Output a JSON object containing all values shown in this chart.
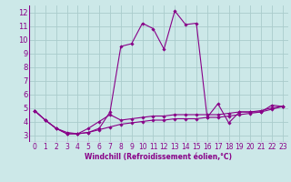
{
  "xlabel": "Windchill (Refroidissement éolien,°C)",
  "background_color": "#cce8e8",
  "grid_color": "#aacccc",
  "line_color": "#880088",
  "xlim": [
    -0.5,
    23.5
  ],
  "ylim": [
    2.5,
    12.5
  ],
  "yticks": [
    3,
    4,
    5,
    6,
    7,
    8,
    9,
    10,
    11,
    12
  ],
  "xticks": [
    0,
    1,
    2,
    3,
    4,
    5,
    6,
    7,
    8,
    9,
    10,
    11,
    12,
    13,
    14,
    15,
    16,
    17,
    18,
    19,
    20,
    21,
    22,
    23
  ],
  "xtick_labels": [
    "0",
    "1",
    "2",
    "3",
    "4",
    "5",
    "6",
    "7",
    "8",
    "9",
    "10",
    "11",
    "12",
    "13",
    "14",
    "15",
    "16",
    "17",
    "18",
    "19",
    "20",
    "21",
    "22",
    "23"
  ],
  "series": [
    [
      4.8,
      4.1,
      3.5,
      3.1,
      3.1,
      3.2,
      3.5,
      4.7,
      9.5,
      9.7,
      11.2,
      10.8,
      9.3,
      12.1,
      11.1,
      11.2,
      4.3,
      5.3,
      3.9,
      4.7,
      4.7,
      4.7,
      5.2,
      5.1
    ],
    [
      4.8,
      4.1,
      3.5,
      3.1,
      3.1,
      3.5,
      4.0,
      4.5,
      4.1,
      4.2,
      4.3,
      4.4,
      4.4,
      4.5,
      4.5,
      4.5,
      4.5,
      4.5,
      4.6,
      4.7,
      4.7,
      4.8,
      5.0,
      5.1
    ],
    [
      4.8,
      4.1,
      3.5,
      3.2,
      3.1,
      3.2,
      3.4,
      3.6,
      3.8,
      3.9,
      4.0,
      4.1,
      4.1,
      4.2,
      4.2,
      4.2,
      4.3,
      4.3,
      4.4,
      4.5,
      4.6,
      4.7,
      4.9,
      5.1
    ]
  ]
}
